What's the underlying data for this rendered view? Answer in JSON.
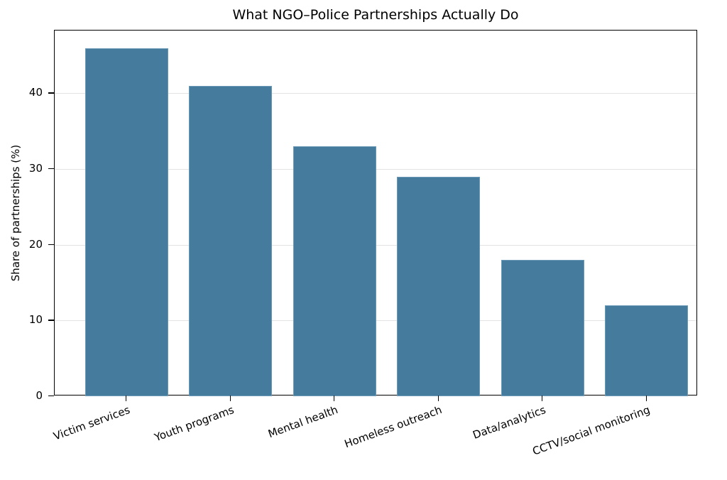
{
  "chart_data": {
    "type": "bar",
    "title": "What NGO–Police Partnerships Actually Do",
    "xlabel": "",
    "ylabel": "Share of partnerships (%)",
    "categories": [
      "Victim services",
      "Youth programs",
      "Mental health",
      "Homeless outreach",
      "Data/analytics",
      "CCTV/social monitoring"
    ],
    "values": [
      46,
      41,
      33,
      29,
      18,
      12
    ],
    "ylim": [
      0,
      48.3
    ],
    "yticks": [
      0,
      10,
      20,
      30,
      40
    ],
    "grid": "y",
    "bar_color": "#457b9d",
    "legend": null
  }
}
